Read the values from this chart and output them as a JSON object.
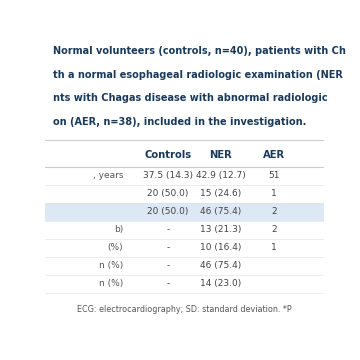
{
  "title_lines": [
    "Normal volunteers (controls, n=40), patients with Ch",
    "th a normal esophageal radiologic examination (NER",
    "nts with Chagas disease with abnormal radiologic",
    "on (AER, n=38), included in the investigation."
  ],
  "col_headers": [
    "",
    "Controls",
    "NER",
    "AER"
  ],
  "row_labels": [
    ", years",
    "",
    "",
    "b)",
    "(%)",
    "n (%)",
    "n (%)"
  ],
  "rows": [
    [
      "37.5 (14.3)",
      "42.9 (12.7)",
      "51"
    ],
    [
      "20 (50.0)",
      "15 (24.6)",
      "1"
    ],
    [
      "20 (50.0)",
      "46 (75.4)",
      "2"
    ],
    [
      "-",
      "13 (21.3)",
      "2"
    ],
    [
      "-",
      "10 (16.4)",
      "1"
    ],
    [
      "-",
      "46 (75.4)",
      ""
    ],
    [
      "-",
      "14 (23.0)",
      ""
    ]
  ],
  "shaded_rows": [
    2
  ],
  "footer": "ECG: electrocardiography; SD: standard deviation. *P",
  "bg_color": "#ffffff",
  "title_color": "#1a3a5c",
  "header_color": "#1a3a5c",
  "row_label_color": "#555555",
  "cell_text_color": "#444444",
  "shaded_row_color": "#dde8f5",
  "separator_color": "#cccccc",
  "footer_color": "#555555",
  "title_fontsize": 7.0,
  "header_fontsize": 7.2,
  "cell_fontsize": 6.5,
  "footer_fontsize": 5.8
}
